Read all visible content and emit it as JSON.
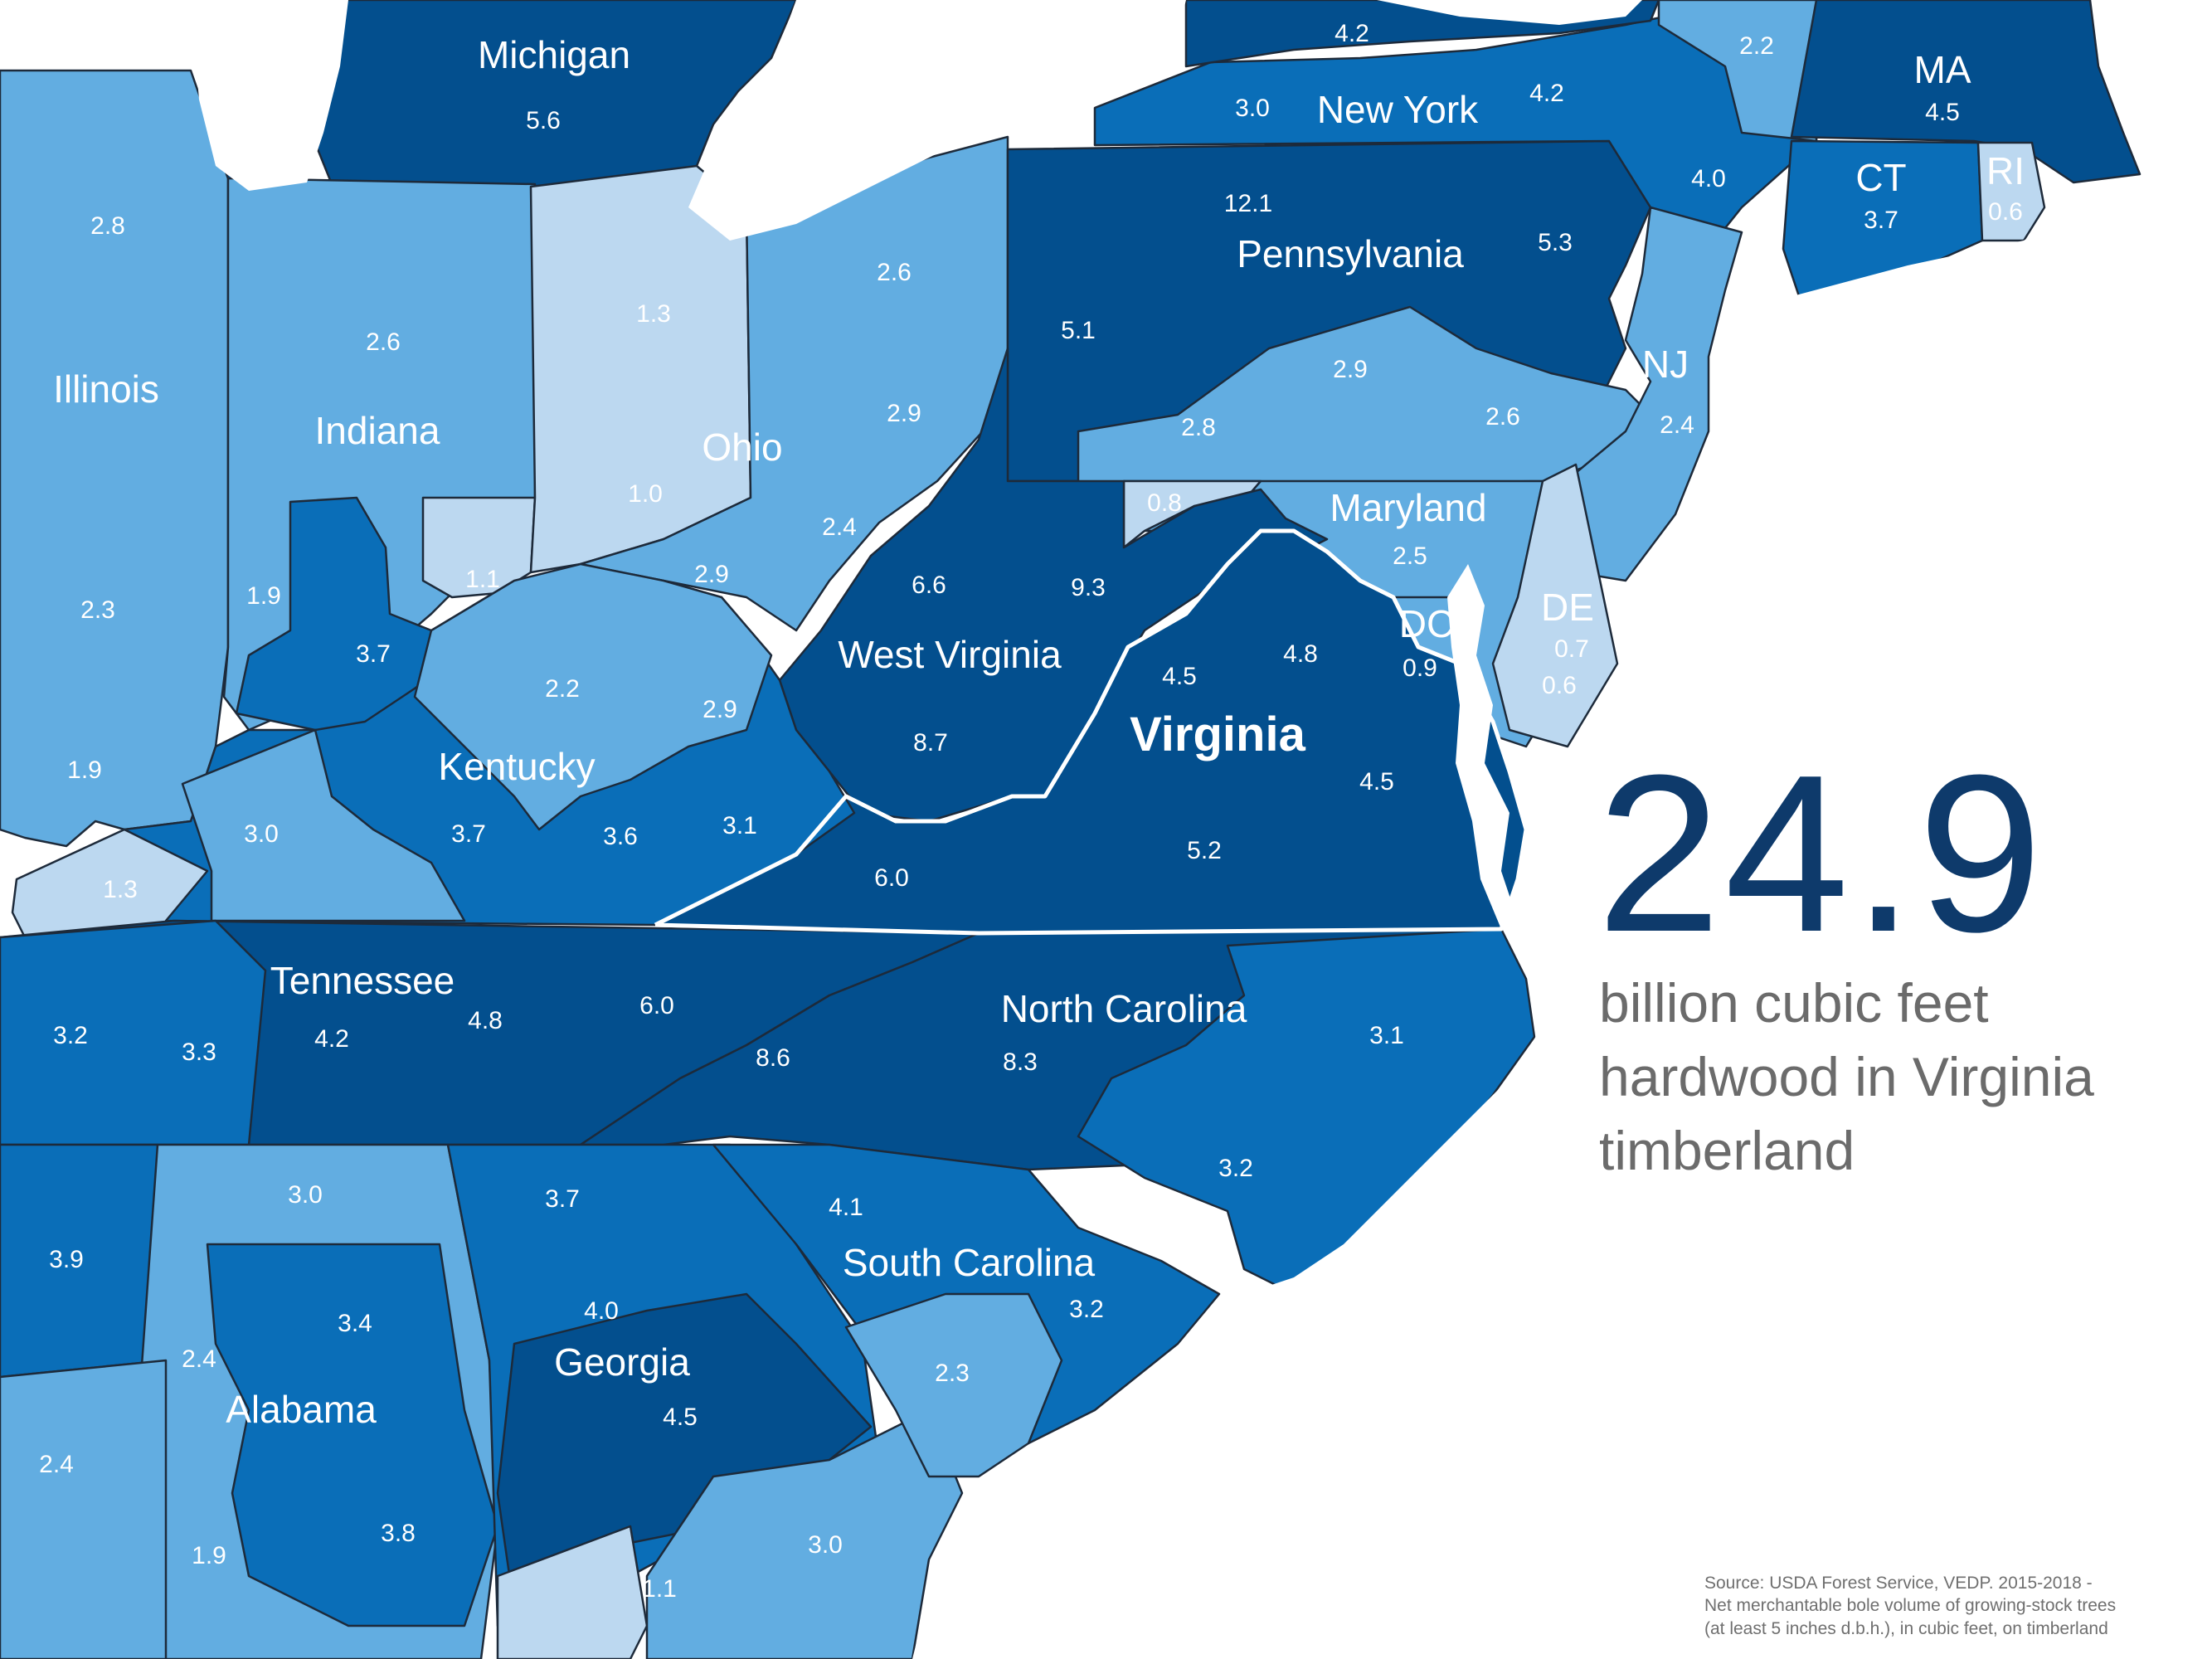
{
  "headline": {
    "value": "24.9",
    "subtitle_lines": [
      "billion cubic feet",
      "hardwood in Virginia",
      "timberland"
    ]
  },
  "source_lines": [
    "Source: USDA Forest Service, VEDP. 2015-2018 -",
    "Net merchantable bole volume of growing-stock trees",
    "(at least 5 inches d.b.h.), in cubic feet, on timberland"
  ],
  "colors": {
    "water": "#ffffff",
    "lightest": "#bcd8f0",
    "light": "#62ade1",
    "medium": "#0a6eb8",
    "dark": "#034f8e",
    "headline": "#0e3a6b",
    "text_gray": "#6b6b6b",
    "border": "#1d2a3a",
    "highlight_border": "#ffffff"
  },
  "states": {
    "michigan": "Michigan",
    "new_york": "New York",
    "ma": "MA",
    "ct": "CT",
    "ri": "RI",
    "pennsylvania": "Pennsylvania",
    "nj": "NJ",
    "illinois": "Illinois",
    "indiana": "Indiana",
    "ohio": "Ohio",
    "maryland": "Maryland",
    "de": "DE",
    "dc": "DC",
    "west_virginia": "West Virginia",
    "virginia": "Virginia",
    "kentucky": "Kentucky",
    "tennessee": "Tennessee",
    "north_carolina": "North Carolina",
    "south_carolina": "South Carolina",
    "georgia": "Georgia",
    "alabama": "Alabama"
  },
  "values": {
    "mi": "5.6",
    "ny_north": "4.2",
    "ny_w": "3.0",
    "ny_e": "4.2",
    "vt": "2.2",
    "ma": "4.5",
    "ct": "3.7",
    "ri": "0.6",
    "ny_se": "4.0",
    "pa_nc": "12.1",
    "pa_ne": "5.3",
    "pa_w": "5.1",
    "pa_s": "2.9",
    "pa_sw": "2.8",
    "pa_se": "2.6",
    "nj": "2.4",
    "il_n": "2.8",
    "il_c": "2.3",
    "il_s": "1.9",
    "in_n": "2.6",
    "in_c": "1.9",
    "in_s": "3.7",
    "in_se": "1.1",
    "oh_nw": "1.3",
    "oh_c": "1.0",
    "oh_ne": "2.6",
    "oh_e": "2.9",
    "oh_se": "2.4",
    "oh_s": "2.9",
    "md_w": "0.8",
    "md_c": "2.5",
    "dc": "0.9",
    "de": "0.7",
    "md_e": "0.6",
    "wv_n": "6.6",
    "wv_e": "9.3",
    "wv_s": "8.7",
    "va_n": "4.5",
    "va_ne": "4.8",
    "va_e": "4.5",
    "va_c": "5.2",
    "va_sw": "6.0",
    "ky_c": "2.2",
    "ky_e": "2.9",
    "ky_w": "3.0",
    "ky_s": "3.7",
    "ky_se": "3.6",
    "ky_far_e": "3.1",
    "il_far_s": "1.3",
    "tn_w": "3.2",
    "tn_wc": "3.3",
    "tn_c": "4.2",
    "tn_ec": "4.8",
    "tn_e": "6.0",
    "nc_w": "8.6",
    "nc_c": "8.3",
    "nc_ne": "3.1",
    "nc_se": "3.2",
    "ms": "3.9",
    "al_n": "3.0",
    "al_ne": "3.4",
    "al_w": "2.4",
    "al_sw": "2.4",
    "al_s": "1.9",
    "al_se": "3.8",
    "ga_n": "3.7",
    "ga_nc": "4.0",
    "ga_c": "4.5",
    "ga_s": "1.1",
    "ga_se": "3.0",
    "sc_n": "4.1",
    "sc_c": "3.2",
    "sc_s": "2.3"
  }
}
